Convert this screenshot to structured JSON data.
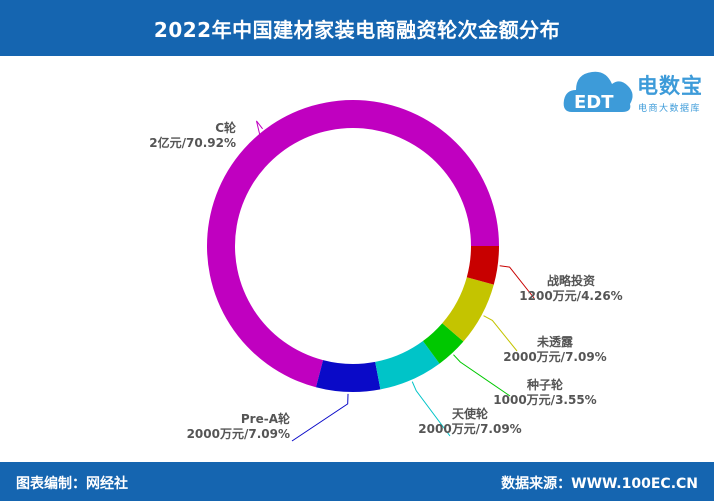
{
  "header": {
    "title": "2022年中国建材家装电商融资轮次金额分布"
  },
  "footer": {
    "left": "图表编制：网经社",
    "right": "数据来源：WWW.100EC.CN"
  },
  "logo": {
    "title": "电数宝",
    "subtitle": "电商大数据库",
    "mark": "EDT",
    "color": "#3d9bd9"
  },
  "chart_data": {
    "type": "pie",
    "style": "donut",
    "title": "2022年中国建材家装电商融资轮次金额分布",
    "start": "3 o'clock, counter-clockwise",
    "series": [
      {
        "name": "C轮",
        "value_label": "2亿元/70.92%",
        "percent": 70.92,
        "color": "#c000c0"
      },
      {
        "name": "Pre-A轮",
        "value_label": "2000万元/7.09%",
        "percent": 7.09,
        "color": "#0a0ac8"
      },
      {
        "name": "天使轮",
        "value_label": "2000万元/7.09%",
        "percent": 7.09,
        "color": "#00c4c8"
      },
      {
        "name": "种子轮",
        "value_label": "1000万元/3.55%",
        "percent": 3.55,
        "color": "#00c800"
      },
      {
        "name": "未透露",
        "value_label": "2000万元/7.09%",
        "percent": 7.09,
        "color": "#c4c400"
      },
      {
        "name": "战略投资",
        "value_label": "1200万元/4.26%",
        "percent": 4.26,
        "color": "#c80000"
      }
    ]
  }
}
